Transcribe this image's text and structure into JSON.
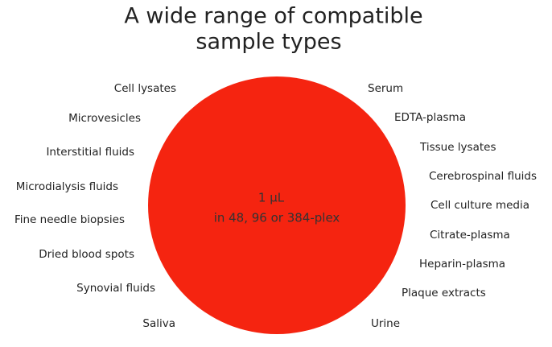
{
  "title": [
    "A wide range of compatible",
    "sample types"
  ],
  "center": [
    "1 µL",
    "in 48, 96 or 384-plex"
  ],
  "left_labels": [
    "Cell lysates",
    "Microvesicles",
    "Interstitial fluids",
    "Microdialysis fluids",
    "Fine needle biopsies",
    "Dried blood spots",
    "Synovial fluids",
    "Saliva"
  ],
  "right_labels": [
    "Serum",
    "EDTA-plasma",
    "Tissue lysates",
    "Cerebrospinal fluids",
    "Cell culture media",
    "Citrate-plasma",
    "Heparin-plasma",
    "Plaque extracts",
    "Urine"
  ]
}
